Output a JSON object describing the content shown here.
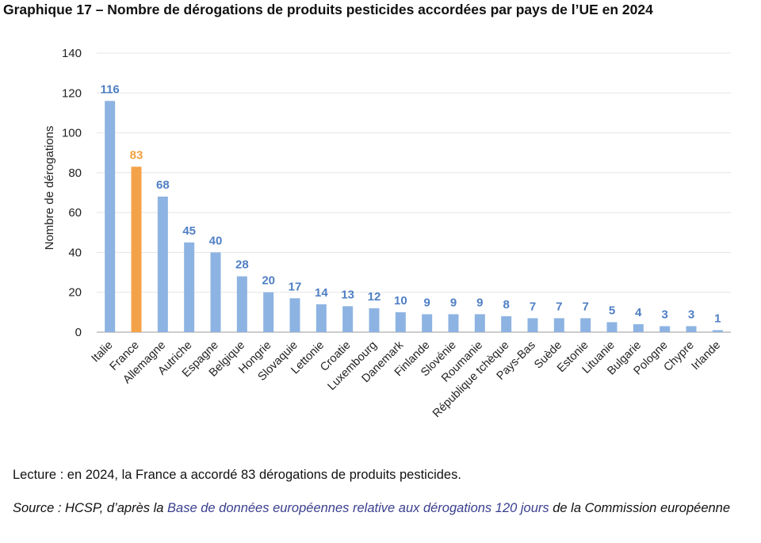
{
  "title": "Graphique 17 – Nombre de dérogations de produits pesticides accordées par pays de l’UE en 2024",
  "lecture": "Lecture : en 2024, la France a accordé 83 dérogations de produits pesticides.",
  "source": {
    "prefix": "Source : HCSP, d’après la ",
    "link": "Base de données européennes relative aux dérogations 120 jours",
    "suffix": " de la Commission européenne"
  },
  "colors": {
    "bar": "#8db3e2",
    "highlight": "#f4a24a",
    "label": "#4f7fc4",
    "highlight_label": "#f0a040"
  },
  "chart_data": {
    "type": "bar",
    "categories": [
      "Italie",
      "France",
      "Allemagne",
      "Autriche",
      "Espagne",
      "Belgique",
      "Hongrie",
      "Slovaquie",
      "Lettonie",
      "Croatie",
      "Luxembourg",
      "Danemark",
      "Finlande",
      "Slovénie",
      "Roumanie",
      "République tchèque",
      "Pays-Bas",
      "Suède",
      "Estonie",
      "Lituanie",
      "Bulgarie",
      "Pologne",
      "Chypre",
      "Irlande"
    ],
    "values": [
      116,
      83,
      68,
      45,
      40,
      28,
      20,
      17,
      14,
      13,
      12,
      10,
      9,
      9,
      9,
      8,
      7,
      7,
      7,
      5,
      4,
      3,
      3,
      1
    ],
    "highlight": "France",
    "ylabel": "Nombre de dérogations",
    "xlabel": "",
    "ylim": [
      0,
      140
    ],
    "yticks": [
      0,
      20,
      40,
      60,
      80,
      100,
      120,
      140
    ],
    "grid": true,
    "data_labels": true
  }
}
